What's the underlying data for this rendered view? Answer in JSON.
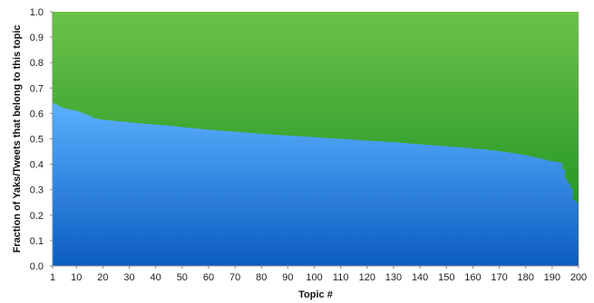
{
  "chart_data": {
    "type": "area",
    "xlabel": "Topic #",
    "ylabel": "Fraction of Yaks/Tweets that belong to this topic",
    "xlim": [
      1,
      200
    ],
    "ylim": [
      0,
      1
    ],
    "x_ticks": [
      "1",
      "10",
      "20",
      "30",
      "40",
      "50",
      "60",
      "70",
      "80",
      "90",
      "100",
      "110",
      "120",
      "130",
      "140",
      "150",
      "160",
      "170",
      "180",
      "190",
      "200"
    ],
    "y_ticks": [
      "0.0",
      "0.1",
      "0.2",
      "0.3",
      "0.4",
      "0.5",
      "0.6",
      "0.7",
      "0.8",
      "0.9",
      "1.0"
    ],
    "grid": false,
    "legend": "none",
    "series": [
      {
        "color": "#1f75cf",
        "boundary_points": {
          "x": [
            1,
            2,
            4,
            6,
            8,
            10,
            12,
            14,
            16,
            18,
            20,
            25,
            30,
            35,
            40,
            45,
            50,
            55,
            60,
            65,
            70,
            75,
            80,
            85,
            90,
            95,
            100,
            105,
            110,
            115,
            120,
            125,
            130,
            135,
            140,
            145,
            150,
            155,
            160,
            165,
            170,
            175,
            180,
            183,
            186,
            188,
            190,
            192,
            194,
            195,
            196,
            197,
            198,
            199,
            200
          ],
          "y": [
            0.64,
            0.635,
            0.625,
            0.618,
            0.614,
            0.61,
            0.602,
            0.594,
            0.584,
            0.578,
            0.575,
            0.57,
            0.565,
            0.56,
            0.556,
            0.552,
            0.546,
            0.541,
            0.536,
            0.532,
            0.528,
            0.524,
            0.52,
            0.516,
            0.513,
            0.51,
            0.507,
            0.503,
            0.5,
            0.497,
            0.493,
            0.49,
            0.487,
            0.483,
            0.479,
            0.475,
            0.471,
            0.467,
            0.463,
            0.458,
            0.452,
            0.445,
            0.437,
            0.43,
            0.423,
            0.418,
            0.413,
            0.41,
            0.405,
            0.38,
            0.34,
            0.325,
            0.305,
            0.26,
            0.25
          ]
        }
      },
      {
        "color": "#2e9a2e",
        "fill_to": 1.0
      }
    ]
  }
}
